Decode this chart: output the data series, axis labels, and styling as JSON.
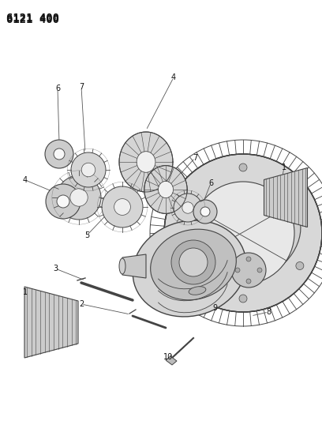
{
  "title": "6121 400",
  "bg_color": "#ffffff",
  "fig_width": 4.08,
  "fig_height": 5.33,
  "dpi": 100,
  "line_color": "#444444",
  "fill_light": "#e8e8e8",
  "fill_mid": "#cccccc",
  "fill_dark": "#aaaaaa"
}
